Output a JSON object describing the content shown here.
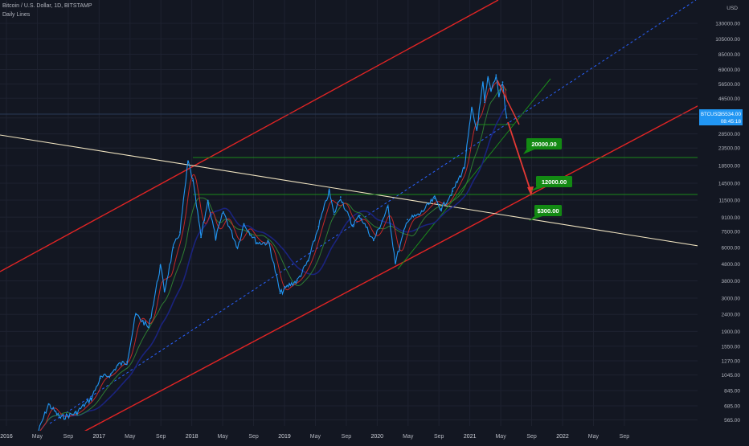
{
  "header": {
    "symbol_line": "Bitcoin / U.S. Dollar, 1D, BITSTAMP",
    "indicator_line": "Daily Lines"
  },
  "colors": {
    "background": "#131722",
    "grid": "#1e2230",
    "price": "#2196f3",
    "ma_fast": "#c62828",
    "ma_mid": "#2e7d32",
    "ma_slow": "#1a237e",
    "channel": "#e02424",
    "midline": "#2962ff",
    "descending": "#efe3c0",
    "support": "#1b8a1b",
    "badge": "#138a13",
    "projection": "#e53935",
    "price_label": "#2196f3"
  },
  "chart_data": {
    "type": "line",
    "title": "Bitcoin / U.S. Dollar, 1D, BITSTAMP",
    "y_scale": "log",
    "ylim": [
      520,
      175000
    ],
    "y_axis_unit": "USD",
    "y_ticks": [
      "130000.00",
      "105000.00",
      "85000.00",
      "69000.00",
      "56500.00",
      "46500.00",
      "35500.00",
      "28500.00",
      "23500.00",
      "18500.00",
      "14500.00",
      "11500.00",
      "9100.00",
      "7500.00",
      "6000.00",
      "4800.00",
      "3800.00",
      "3000.00",
      "2400.00",
      "1900.00",
      "1550.00",
      "1270.00",
      "1045.00",
      "845.00",
      "685.00",
      "565.00"
    ],
    "x_ticks": [
      "2016",
      "May",
      "Sep",
      "2017",
      "May",
      "Sep",
      "2018",
      "May",
      "Sep",
      "2019",
      "May",
      "Sep",
      "2020",
      "May",
      "Sep",
      "2021",
      "May",
      "Sep",
      "2022",
      "May",
      "Sep"
    ],
    "grid": true,
    "series": [
      {
        "role": "price",
        "points": [
          [
            "2016-05-01",
            460
          ],
          [
            "2016-06-15",
            700
          ],
          [
            "2016-08-01",
            580
          ],
          [
            "2016-10-01",
            620
          ],
          [
            "2016-12-01",
            760
          ],
          [
            "2017-01-05",
            1000
          ],
          [
            "2017-02-15",
            1050
          ],
          [
            "2017-03-15",
            1200
          ],
          [
            "2017-04-20",
            1250
          ],
          [
            "2017-05-25",
            2400
          ],
          [
            "2017-07-15",
            2000
          ],
          [
            "2017-08-30",
            4700
          ],
          [
            "2017-09-15",
            3300
          ],
          [
            "2017-10-20",
            6000
          ],
          [
            "2017-11-15",
            7400
          ],
          [
            "2017-12-17",
            19600
          ],
          [
            "2018-01-05",
            15000
          ],
          [
            "2018-02-06",
            6900
          ],
          [
            "2018-03-05",
            11400
          ],
          [
            "2018-04-05",
            6800
          ],
          [
            "2018-05-05",
            9800
          ],
          [
            "2018-06-30",
            6000
          ],
          [
            "2018-07-25",
            8300
          ],
          [
            "2018-09-15",
            6400
          ],
          [
            "2018-11-01",
            6400
          ],
          [
            "2018-12-15",
            3200
          ],
          [
            "2019-01-20",
            3600
          ],
          [
            "2019-02-20",
            3800
          ],
          [
            "2019-04-05",
            5000
          ],
          [
            "2019-05-15",
            8000
          ],
          [
            "2019-06-26",
            13000
          ],
          [
            "2019-07-15",
            9500
          ],
          [
            "2019-08-10",
            12000
          ],
          [
            "2019-09-25",
            8100
          ],
          [
            "2019-10-25",
            9300
          ],
          [
            "2019-12-18",
            6600
          ],
          [
            "2020-02-13",
            10400
          ],
          [
            "2020-03-13",
            4900
          ],
          [
            "2020-04-30",
            8800
          ],
          [
            "2020-06-15",
            9400
          ],
          [
            "2020-08-15",
            11800
          ],
          [
            "2020-09-10",
            10200
          ],
          [
            "2020-10-25",
            13000
          ],
          [
            "2020-12-10",
            18000
          ],
          [
            "2021-01-08",
            40000
          ],
          [
            "2021-01-28",
            30000
          ],
          [
            "2021-02-21",
            57000
          ],
          [
            "2021-02-28",
            44000
          ],
          [
            "2021-03-13",
            61000
          ],
          [
            "2021-03-25",
            52000
          ],
          [
            "2021-04-14",
            64000
          ],
          [
            "2021-04-25",
            48000
          ],
          [
            "2021-05-10",
            58000
          ],
          [
            "2021-05-20",
            40000
          ],
          [
            "2021-05-26",
            35534
          ]
        ]
      }
    ],
    "annotations": [
      {
        "label": "20000.00",
        "value": 20000
      },
      {
        "label": "12000.00",
        "value": 12000
      },
      {
        "label": "$300.00",
        "value": 300
      }
    ],
    "horizontal_levels": [
      20000,
      12000
    ],
    "last_price": {
      "symbol": "BTCUSD",
      "value": "35534.00",
      "countdown": "08:45:18"
    }
  }
}
